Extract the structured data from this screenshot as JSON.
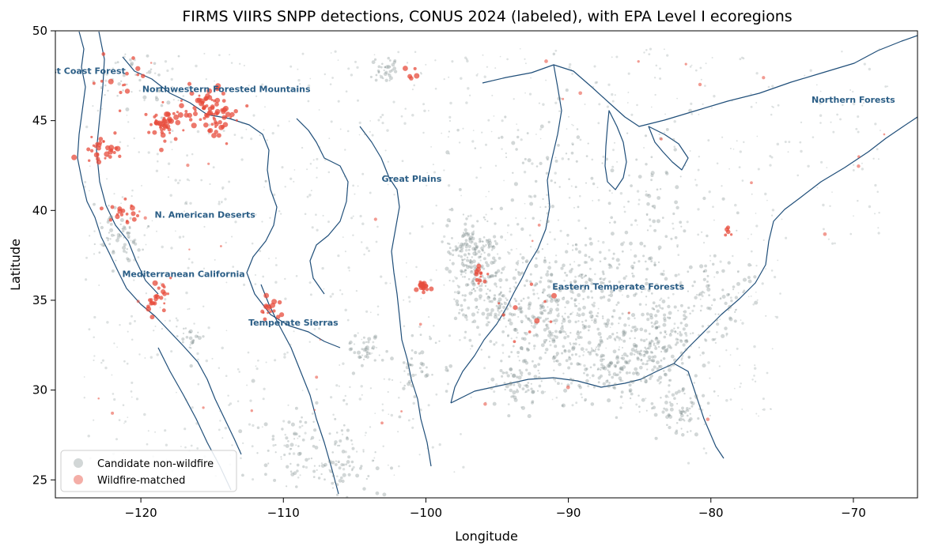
{
  "chart_data": {
    "type": "scatter",
    "title": "FIRMS VIIRS SNPP detections, CONUS 2024 (labeled), with EPA Level I ecoregions",
    "xlabel": "Longitude",
    "ylabel": "Latitude",
    "xlim": [
      -126,
      -65.5
    ],
    "ylim": [
      24,
      50
    ],
    "xticks": [
      -120,
      -110,
      -100,
      -90,
      -80,
      -70
    ],
    "xtick_labels": [
      "−120",
      "−110",
      "−100",
      "−90",
      "−80",
      "−70"
    ],
    "yticks": [
      25,
      30,
      35,
      40,
      45,
      50
    ],
    "ytick_labels": [
      "25",
      "30",
      "35",
      "40",
      "45",
      "50"
    ],
    "grid": false,
    "legend_position": "bottom-left",
    "colors": {
      "non_wildfire": "#7f8c8d",
      "wildfire": "#e74c3c",
      "ecoregion_boundary": "#1f4e79",
      "label_text": "#2b5e86"
    },
    "series": [
      {
        "name": "Candidate non-wildfire",
        "color": "#7f8c8d",
        "clusters": [
          {
            "lon": -96.5,
            "lat": 37.6,
            "spread": 1.1,
            "n": 170
          },
          {
            "lon": -95.8,
            "lat": 35.2,
            "spread": 1.2,
            "n": 110
          },
          {
            "lon": -92.5,
            "lat": 34.0,
            "spread": 1.6,
            "n": 140
          },
          {
            "lon": -88.5,
            "lat": 32.5,
            "spread": 1.8,
            "n": 170
          },
          {
            "lon": -85.0,
            "lat": 31.5,
            "spread": 1.6,
            "n": 170
          },
          {
            "lon": -83.0,
            "lat": 33.5,
            "spread": 1.5,
            "n": 110
          },
          {
            "lon": -82.0,
            "lat": 29.0,
            "spread": 1.0,
            "n": 70
          },
          {
            "lon": -93.5,
            "lat": 30.5,
            "spread": 1.0,
            "n": 70
          },
          {
            "lon": -90.5,
            "lat": 36.0,
            "spread": 1.5,
            "n": 90
          },
          {
            "lon": -86.0,
            "lat": 36.5,
            "spread": 1.6,
            "n": 80
          },
          {
            "lon": -79.5,
            "lat": 35.5,
            "spread": 1.4,
            "n": 60
          },
          {
            "lon": -100.5,
            "lat": 31.5,
            "spread": 1.0,
            "n": 45
          },
          {
            "lon": -104.3,
            "lat": 32.2,
            "spread": 0.6,
            "n": 35
          },
          {
            "lon": -108.5,
            "lat": 27.0,
            "spread": 1.8,
            "n": 80
          },
          {
            "lon": -105.5,
            "lat": 25.5,
            "spread": 1.3,
            "n": 60
          },
          {
            "lon": -121.5,
            "lat": 38.5,
            "spread": 0.9,
            "n": 60
          },
          {
            "lon": -102.7,
            "lat": 47.9,
            "spread": 0.5,
            "n": 35
          },
          {
            "lon": -120.0,
            "lat": 47.5,
            "spread": 1.3,
            "n": 40
          },
          {
            "lon": -116.5,
            "lat": 33.0,
            "spread": 0.6,
            "n": 25
          },
          {
            "lon": -93.0,
            "lat": 41.5,
            "spread": 3.0,
            "n": 80
          },
          {
            "lon": -84.0,
            "lat": 40.5,
            "spread": 2.5,
            "n": 60
          }
        ],
        "background_scatter_n": 1300
      },
      {
        "name": "Wildfire-matched",
        "color": "#e74c3c",
        "clusters": [
          {
            "lon": -115.0,
            "lat": 45.5,
            "spread": 0.9,
            "n": 80
          },
          {
            "lon": -118.3,
            "lat": 44.8,
            "spread": 0.7,
            "n": 50
          },
          {
            "lon": -122.5,
            "lat": 43.3,
            "spread": 0.6,
            "n": 30
          },
          {
            "lon": -121.5,
            "lat": 39.8,
            "spread": 0.5,
            "n": 18
          },
          {
            "lon": -119.0,
            "lat": 35.0,
            "spread": 0.6,
            "n": 25
          },
          {
            "lon": -111.0,
            "lat": 34.5,
            "spread": 0.4,
            "n": 18
          },
          {
            "lon": -100.2,
            "lat": 35.8,
            "spread": 0.25,
            "n": 18
          },
          {
            "lon": -96.2,
            "lat": 36.5,
            "spread": 0.3,
            "n": 12
          },
          {
            "lon": -101.0,
            "lat": 47.7,
            "spread": 0.2,
            "n": 5
          },
          {
            "lon": -121.0,
            "lat": 47.5,
            "spread": 1.0,
            "n": 14
          },
          {
            "lon": -78.9,
            "lat": 38.8,
            "spread": 0.2,
            "n": 5
          },
          {
            "lon": -93.0,
            "lat": 34.5,
            "spread": 1.2,
            "n": 10
          }
        ],
        "background_scatter_n": 40
      }
    ],
    "annotations": [
      {
        "text": "Marine West Coast Forest",
        "lon": -125.5,
        "lat": 47.6
      },
      {
        "text": "Northwestern Forested Mountains",
        "lon": -114.0,
        "lat": 46.6
      },
      {
        "text": "Northern Forests",
        "lon": -70.0,
        "lat": 46.0
      },
      {
        "text": "Great Plains",
        "lon": -101.0,
        "lat": 41.6
      },
      {
        "text": "N. American Deserts",
        "lon": -115.5,
        "lat": 39.6
      },
      {
        "text": "Mediterranean California",
        "lon": -117.0,
        "lat": 36.3
      },
      {
        "text": "Eastern Temperate Forests",
        "lon": -86.5,
        "lat": 35.6
      },
      {
        "text": "Temperate Sierras",
        "lon": -109.3,
        "lat": 33.6
      }
    ]
  },
  "legend": {
    "items": [
      {
        "label": "Candidate non-wildfire",
        "color": "#7f8c8d"
      },
      {
        "label": "Wildfire-matched",
        "color": "#e74c3c"
      }
    ]
  }
}
